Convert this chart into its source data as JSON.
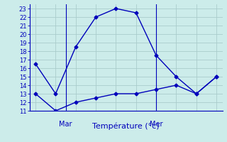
{
  "xlabel": "Température (°c)",
  "bg_color": "#ccecea",
  "line_color": "#0000bb",
  "grid_color": "#aacccc",
  "ylim": [
    11,
    23.5
  ],
  "xlim": [
    -0.3,
    9.3
  ],
  "yticks": [
    11,
    12,
    13,
    14,
    15,
    16,
    17,
    18,
    19,
    20,
    21,
    22,
    23
  ],
  "series1_x": [
    0,
    1,
    2,
    3,
    4,
    5,
    6,
    7,
    8,
    9
  ],
  "series1_y": [
    16.5,
    13.0,
    18.5,
    22.0,
    23.0,
    22.5,
    17.5,
    15.0,
    13.0,
    15.0
  ],
  "series2_x": [
    0,
    1,
    2,
    3,
    4,
    5,
    6,
    7,
    8,
    9
  ],
  "series2_y": [
    13.0,
    11.0,
    12.0,
    12.5,
    13.0,
    13.0,
    13.5,
    14.0,
    13.0,
    15.0
  ],
  "mar_x": 1.5,
  "mer_x": 6.0,
  "xlabel_fontsize": 8,
  "ytick_fontsize": 6,
  "xtick_fontsize": 7
}
